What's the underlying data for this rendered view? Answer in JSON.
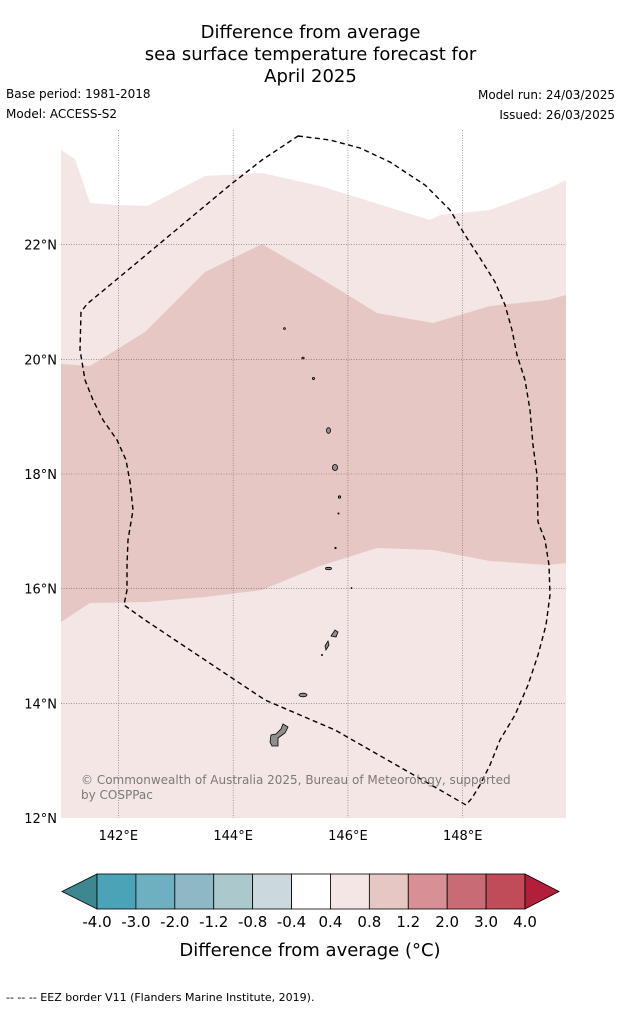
{
  "title": {
    "line1": "Difference from average",
    "line2": "sea surface temperature forecast for",
    "line3": "April 2025"
  },
  "meta": {
    "base_period": "Base period: 1981-2018",
    "model": "Model: ACCESS-S2",
    "model_run": "Model run: 24/03/2025",
    "issued": "Issued: 26/03/2025"
  },
  "map": {
    "lon_range": [
      141.0,
      149.8
    ],
    "lat_range": [
      12.0,
      24.0
    ],
    "lon_ticks": [
      {
        "value": 142,
        "label": "142°E"
      },
      {
        "value": 144,
        "label": "144°E"
      },
      {
        "value": 146,
        "label": "146°E"
      },
      {
        "value": 148,
        "label": "148°E"
      }
    ],
    "lat_ticks": [
      {
        "value": 12,
        "label": "12°N"
      },
      {
        "value": 14,
        "label": "14°N"
      },
      {
        "value": 16,
        "label": "16°N"
      },
      {
        "value": 18,
        "label": "18°N"
      },
      {
        "value": 20,
        "label": "20°N"
      },
      {
        "value": 22,
        "label": "22°N"
      }
    ],
    "bands": [
      {
        "name": "0.4 to 0.8",
        "color": "#f3e6e5"
      },
      {
        "name": "0.8 to 1.2",
        "color": "#e6c7c3"
      }
    ],
    "copyright_line1": "© Commonwealth of Australia 2025, Bureau of Meteorology, supported",
    "copyright_line2": "by COSPPac",
    "land_color": "#8f8f8f"
  },
  "colorbar": {
    "labels": [
      "-4.0",
      "-3.0",
      "-2.0",
      "-1.2",
      "-0.8",
      "-0.4",
      "0.4",
      "0.8",
      "1.2",
      "2.0",
      "3.0",
      "4.0"
    ],
    "colors": [
      "#4aa3b6",
      "#6eafc0",
      "#8db9c6",
      "#abc8cd",
      "#cbd9dc",
      "#ffffff",
      "#f3e6e5",
      "#e6c7c3",
      "#d88f96",
      "#c96b75",
      "#c04b59"
    ],
    "under_color": "#3d8790",
    "over_color": "#b11f3b",
    "title": "Difference from average (°C)"
  },
  "footer": "-- -- -- EEZ border V11 (Flanders Marine Institute, 2019)."
}
